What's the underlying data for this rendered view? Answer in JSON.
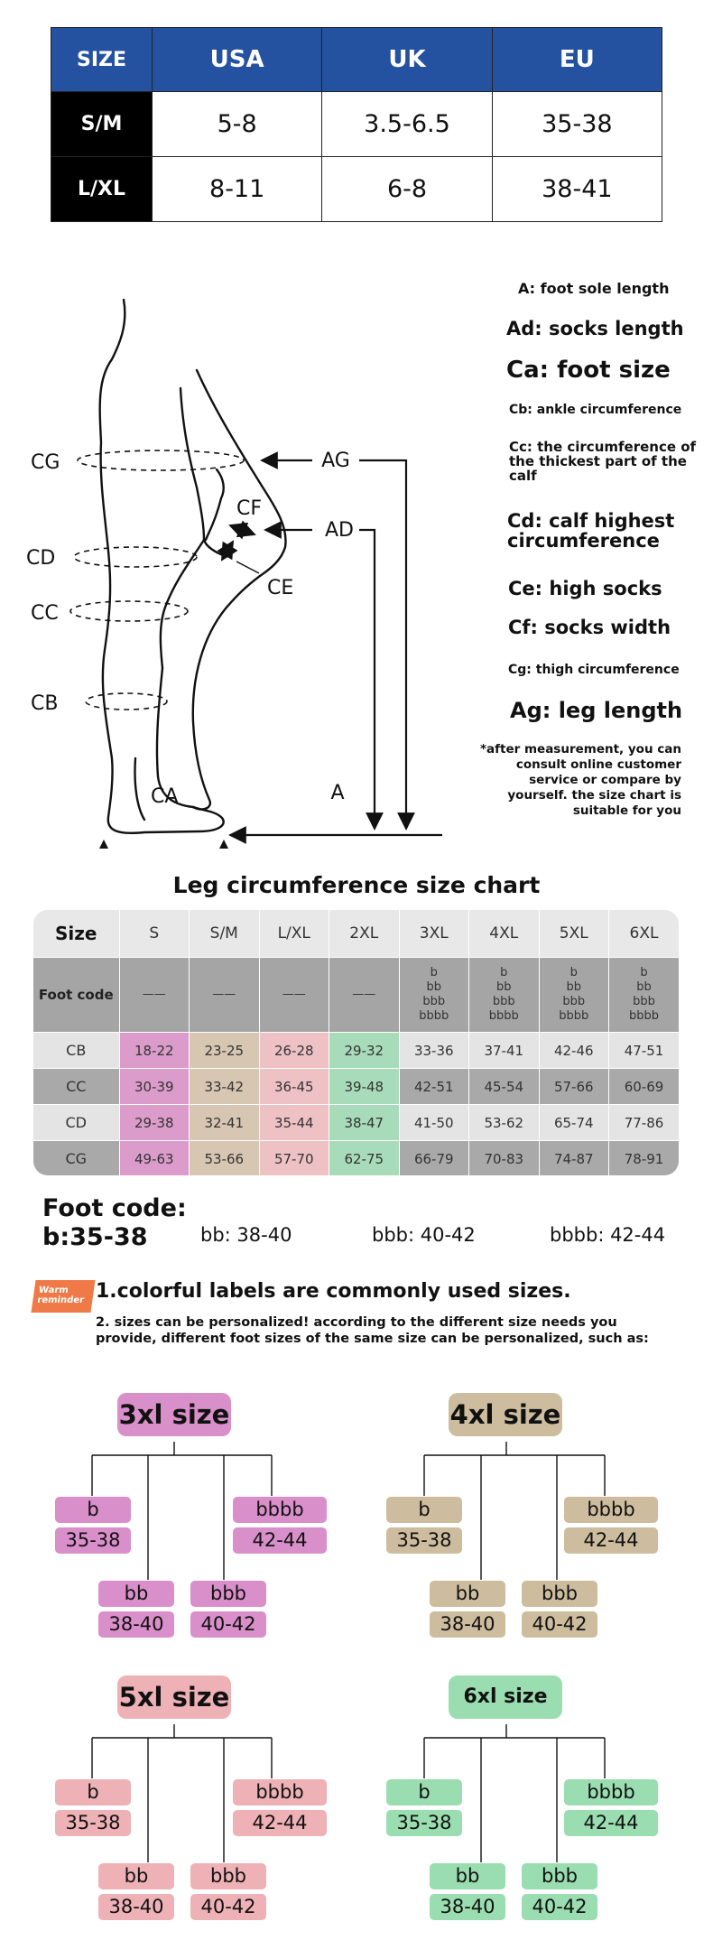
{
  "size_table": {
    "headers": [
      "SIZE",
      "USA",
      "UK",
      "EU"
    ],
    "rows": [
      {
        "label": "S/M",
        "usa": "5-8",
        "uk": "3.5-6.5",
        "eu": "35-38"
      },
      {
        "label": "L/XL",
        "usa": "8-11",
        "uk": "6-8",
        "eu": "38-41"
      }
    ]
  },
  "diagram": {
    "labels": {
      "cg": "CG",
      "cd": "CD",
      "cc": "CC",
      "cb": "CB",
      "ca": "CA",
      "cf": "CF",
      "ce": "CE",
      "ag": "AG",
      "ad": "AD",
      "a": "A"
    }
  },
  "legend": {
    "a": "A: foot sole length",
    "ad": "Ad: socks length",
    "ca": "Ca: foot size",
    "cb": "Cb: ankle circumference",
    "cc": "Cc: the circumference of the thickest part of the calf",
    "cd": "Cd: calf highest circumference",
    "ce": "Ce: high socks",
    "cf": "Cf: socks width",
    "cg": "Cg: thigh circumference",
    "ag": "Ag: leg length",
    "note": "*after measurement, you can consult online customer service or compare by yourself. the size chart is suitable for you"
  },
  "leg_chart": {
    "title": "Leg circumference size chart",
    "header": [
      "Size",
      "S",
      "S/M",
      "L/XL",
      "2XL",
      "3XL",
      "4XL",
      "5XL",
      "6XL"
    ],
    "foot_code_label": "Foot code",
    "foot_code_values": [
      "——",
      "——",
      "——",
      "——",
      "b bb bbb bbbb",
      "b bb bbb bbbb",
      "b bb bbb bbbb",
      "b bb bbb bbbb"
    ],
    "rows": [
      {
        "label": "CB",
        "values": [
          "18-22",
          "23-25",
          "26-28",
          "29-32",
          "33-36",
          "37-41",
          "42-46",
          "47-51"
        ]
      },
      {
        "label": "CC",
        "values": [
          "30-39",
          "33-42",
          "36-45",
          "39-48",
          "42-51",
          "45-54",
          "57-66",
          "60-69"
        ]
      },
      {
        "label": "CD",
        "values": [
          "29-38",
          "32-41",
          "35-44",
          "38-47",
          "41-50",
          "53-62",
          "65-74",
          "77-86"
        ]
      },
      {
        "label": "CG",
        "values": [
          "49-63",
          "53-66",
          "57-70",
          "62-75",
          "66-79",
          "70-83",
          "74-87",
          "78-91"
        ]
      }
    ],
    "highlight_colors": {
      "S": "#dc9ccb",
      "S/M": "#d6c6b2",
      "L/XL": "#eec1c5",
      "2XL": "#a8dbb9"
    }
  },
  "foot_code": {
    "title": "Foot code:",
    "b": "b:35-38",
    "bb": "bb:  38-40",
    "bbb": "bbb:  40-42",
    "bbbb": "bbbb:  42-44"
  },
  "reminder": {
    "badge": "Warm reminder",
    "note1": "1.colorful labels are commonly used sizes.",
    "note2": "2. sizes can be personalized! according to the different size needs you provide, different foot sizes of the same size can be personalized, such as:"
  },
  "trees": [
    {
      "title": "3xl size",
      "color": "#d98fca",
      "codes": [
        "b",
        "bb",
        "bbb",
        "bbbb"
      ],
      "ranges": [
        "35-38",
        "38-40",
        "40-42",
        "42-44"
      ]
    },
    {
      "title": "4xl size",
      "color": "#cdbd9e",
      "codes": [
        "b",
        "bb",
        "bbb",
        "bbbb"
      ],
      "ranges": [
        "35-38",
        "38-40",
        "40-42",
        "42-44"
      ]
    },
    {
      "title": "5xl size",
      "color": "#eeb1b6",
      "codes": [
        "b",
        "bb",
        "bbb",
        "bbbb"
      ],
      "ranges": [
        "35-38",
        "38-40",
        "40-42",
        "42-44"
      ]
    },
    {
      "title": "6xl size",
      "color": "#99ddb0",
      "codes": [
        "b",
        "bb",
        "bbb",
        "bbbb"
      ],
      "ranges": [
        "35-38",
        "38-40",
        "40-42",
        "42-44"
      ]
    }
  ]
}
